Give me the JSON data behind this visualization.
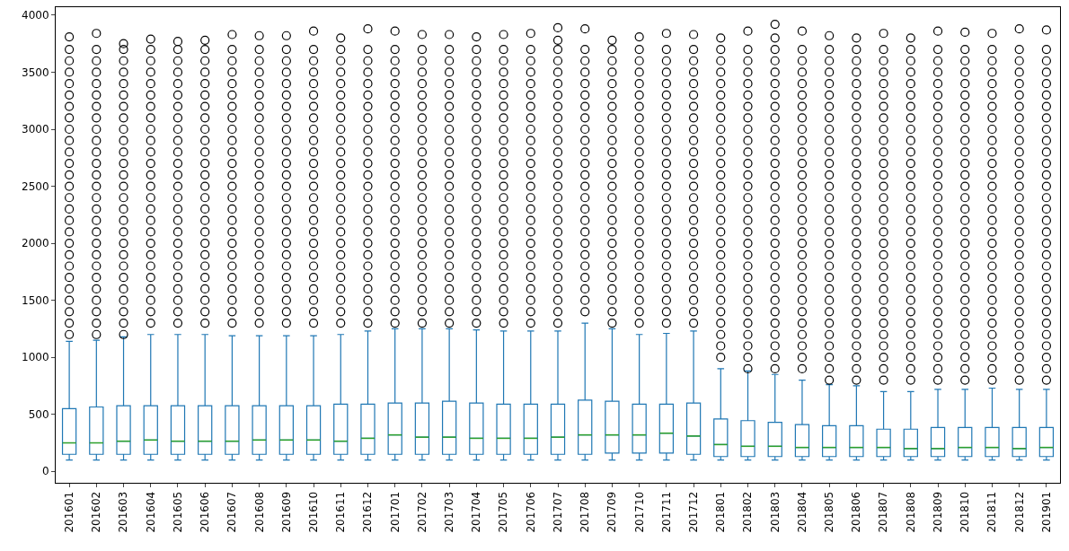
{
  "chart_data": {
    "type": "box",
    "categories": [
      "201601",
      "201602",
      "201603",
      "201604",
      "201605",
      "201606",
      "201607",
      "201608",
      "201609",
      "201610",
      "201611",
      "201612",
      "201701",
      "201702",
      "201703",
      "201704",
      "201705",
      "201706",
      "201707",
      "201708",
      "201709",
      "201710",
      "201711",
      "201712",
      "201801",
      "201802",
      "201803",
      "201804",
      "201805",
      "201806",
      "201807",
      "201808",
      "201809",
      "201810",
      "201811",
      "201812",
      "201901"
    ],
    "series": [
      {
        "color": "#1f77b4",
        "boxes": [
          {
            "low": 100,
            "q1": 150,
            "median": 250,
            "q3": 550,
            "high": 1140,
            "outliers": [
              1200,
              1300,
              1400,
              1500,
              1600,
              1700,
              1800,
              1900,
              2000,
              2100,
              2200,
              2300,
              2400,
              2500,
              2600,
              2700,
              2800,
              2900,
              3000,
              3100,
              3200,
              3300,
              3400,
              3500,
              3600,
              3700,
              3810
            ]
          },
          {
            "low": 100,
            "q1": 150,
            "median": 250,
            "q3": 565,
            "high": 1150,
            "outliers": [
              1200,
              1300,
              1400,
              1500,
              1600,
              1700,
              1800,
              1900,
              2000,
              2100,
              2200,
              2300,
              2400,
              2500,
              2600,
              2700,
              2800,
              2900,
              3000,
              3100,
              3200,
              3300,
              3400,
              3500,
              3600,
              3700,
              3840
            ]
          },
          {
            "low": 100,
            "q1": 150,
            "median": 265,
            "q3": 575,
            "high": 1180,
            "outliers": [
              1200,
              1300,
              1400,
              1500,
              1600,
              1700,
              1800,
              1900,
              2000,
              2100,
              2200,
              2300,
              2400,
              2500,
              2600,
              2700,
              2800,
              2900,
              3000,
              3100,
              3200,
              3300,
              3400,
              3500,
              3600,
              3700,
              3750
            ]
          },
          {
            "low": 100,
            "q1": 150,
            "median": 275,
            "q3": 575,
            "high": 1200,
            "outliers": [
              1300,
              1400,
              1500,
              1600,
              1700,
              1800,
              1900,
              2000,
              2100,
              2200,
              2300,
              2400,
              2500,
              2600,
              2700,
              2800,
              2900,
              3000,
              3100,
              3200,
              3300,
              3400,
              3500,
              3600,
              3700,
              3790
            ]
          },
          {
            "low": 100,
            "q1": 150,
            "median": 265,
            "q3": 575,
            "high": 1200,
            "outliers": [
              1300,
              1400,
              1500,
              1600,
              1700,
              1800,
              1900,
              2000,
              2100,
              2200,
              2300,
              2400,
              2500,
              2600,
              2700,
              2800,
              2900,
              3000,
              3100,
              3200,
              3300,
              3400,
              3500,
              3600,
              3700,
              3770
            ]
          },
          {
            "low": 100,
            "q1": 150,
            "median": 265,
            "q3": 575,
            "high": 1200,
            "outliers": [
              1300,
              1400,
              1500,
              1600,
              1700,
              1800,
              1900,
              2000,
              2100,
              2200,
              2300,
              2400,
              2500,
              2600,
              2700,
              2800,
              2900,
              3000,
              3100,
              3200,
              3300,
              3400,
              3500,
              3600,
              3700,
              3780
            ]
          },
          {
            "low": 100,
            "q1": 150,
            "median": 265,
            "q3": 575,
            "high": 1190,
            "outliers": [
              1300,
              1400,
              1500,
              1600,
              1700,
              1800,
              1900,
              2000,
              2100,
              2200,
              2300,
              2400,
              2500,
              2600,
              2700,
              2800,
              2900,
              3000,
              3100,
              3200,
              3300,
              3400,
              3500,
              3600,
              3700,
              3830
            ]
          },
          {
            "low": 100,
            "q1": 150,
            "median": 275,
            "q3": 575,
            "high": 1190,
            "outliers": [
              1300,
              1400,
              1500,
              1600,
              1700,
              1800,
              1900,
              2000,
              2100,
              2200,
              2300,
              2400,
              2500,
              2600,
              2700,
              2800,
              2900,
              3000,
              3100,
              3200,
              3300,
              3400,
              3500,
              3600,
              3700,
              3820
            ]
          },
          {
            "low": 100,
            "q1": 150,
            "median": 275,
            "q3": 575,
            "high": 1190,
            "outliers": [
              1300,
              1400,
              1500,
              1600,
              1700,
              1800,
              1900,
              2000,
              2100,
              2200,
              2300,
              2400,
              2500,
              2600,
              2700,
              2800,
              2900,
              3000,
              3100,
              3200,
              3300,
              3400,
              3500,
              3600,
              3700,
              3820
            ]
          },
          {
            "low": 100,
            "q1": 150,
            "median": 275,
            "q3": 575,
            "high": 1190,
            "outliers": [
              1300,
              1400,
              1500,
              1600,
              1700,
              1800,
              1900,
              2000,
              2100,
              2200,
              2300,
              2400,
              2500,
              2600,
              2700,
              2800,
              2900,
              3000,
              3100,
              3200,
              3300,
              3400,
              3500,
              3600,
              3700,
              3860
            ]
          },
          {
            "low": 100,
            "q1": 150,
            "median": 265,
            "q3": 590,
            "high": 1200,
            "outliers": [
              1300,
              1400,
              1500,
              1600,
              1700,
              1800,
              1900,
              2000,
              2100,
              2200,
              2300,
              2400,
              2500,
              2600,
              2700,
              2800,
              2900,
              3000,
              3100,
              3200,
              3300,
              3400,
              3500,
              3600,
              3700,
              3800
            ]
          },
          {
            "low": 100,
            "q1": 150,
            "median": 290,
            "q3": 590,
            "high": 1230,
            "outliers": [
              1300,
              1400,
              1500,
              1600,
              1700,
              1800,
              1900,
              2000,
              2100,
              2200,
              2300,
              2400,
              2500,
              2600,
              2700,
              2800,
              2900,
              3000,
              3100,
              3200,
              3300,
              3400,
              3500,
              3600,
              3700,
              3880
            ]
          },
          {
            "low": 100,
            "q1": 150,
            "median": 320,
            "q3": 600,
            "high": 1250,
            "outliers": [
              1300,
              1400,
              1500,
              1600,
              1700,
              1800,
              1900,
              2000,
              2100,
              2200,
              2300,
              2400,
              2500,
              2600,
              2700,
              2800,
              2900,
              3000,
              3100,
              3200,
              3300,
              3400,
              3500,
              3600,
              3700,
              3860
            ]
          },
          {
            "low": 100,
            "q1": 150,
            "median": 300,
            "q3": 600,
            "high": 1250,
            "outliers": [
              1300,
              1400,
              1500,
              1600,
              1700,
              1800,
              1900,
              2000,
              2100,
              2200,
              2300,
              2400,
              2500,
              2600,
              2700,
              2800,
              2900,
              3000,
              3100,
              3200,
              3300,
              3400,
              3500,
              3600,
              3700,
              3830
            ]
          },
          {
            "low": 100,
            "q1": 150,
            "median": 300,
            "q3": 615,
            "high": 1250,
            "outliers": [
              1300,
              1400,
              1500,
              1600,
              1700,
              1800,
              1900,
              2000,
              2100,
              2200,
              2300,
              2400,
              2500,
              2600,
              2700,
              2800,
              2900,
              3000,
              3100,
              3200,
              3300,
              3400,
              3500,
              3600,
              3700,
              3830
            ]
          },
          {
            "low": 100,
            "q1": 150,
            "median": 290,
            "q3": 600,
            "high": 1240,
            "outliers": [
              1300,
              1400,
              1500,
              1600,
              1700,
              1800,
              1900,
              2000,
              2100,
              2200,
              2300,
              2400,
              2500,
              2600,
              2700,
              2800,
              2900,
              3000,
              3100,
              3200,
              3300,
              3400,
              3500,
              3600,
              3700,
              3810
            ]
          },
          {
            "low": 100,
            "q1": 150,
            "median": 290,
            "q3": 590,
            "high": 1230,
            "outliers": [
              1300,
              1400,
              1500,
              1600,
              1700,
              1800,
              1900,
              2000,
              2100,
              2200,
              2300,
              2400,
              2500,
              2600,
              2700,
              2800,
              2900,
              3000,
              3100,
              3200,
              3300,
              3400,
              3500,
              3600,
              3700,
              3830
            ]
          },
          {
            "low": 100,
            "q1": 150,
            "median": 290,
            "q3": 590,
            "high": 1230,
            "outliers": [
              1300,
              1400,
              1500,
              1600,
              1700,
              1800,
              1900,
              2000,
              2100,
              2200,
              2300,
              2400,
              2500,
              2600,
              2700,
              2800,
              2900,
              3000,
              3100,
              3200,
              3300,
              3400,
              3500,
              3600,
              3700,
              3840
            ]
          },
          {
            "low": 100,
            "q1": 150,
            "median": 300,
            "q3": 590,
            "high": 1230,
            "outliers": [
              1300,
              1400,
              1500,
              1600,
              1700,
              1800,
              1900,
              2000,
              2100,
              2200,
              2300,
              2400,
              2500,
              2600,
              2700,
              2800,
              2900,
              3000,
              3100,
              3200,
              3300,
              3400,
              3500,
              3600,
              3700,
              3780,
              3890
            ]
          },
          {
            "low": 100,
            "q1": 150,
            "median": 320,
            "q3": 625,
            "high": 1300,
            "outliers": [
              1400,
              1500,
              1600,
              1700,
              1800,
              1900,
              2000,
              2100,
              2200,
              2300,
              2400,
              2500,
              2600,
              2700,
              2800,
              2900,
              3000,
              3100,
              3200,
              3300,
              3400,
              3500,
              3600,
              3700,
              3880
            ]
          },
          {
            "low": 100,
            "q1": 160,
            "median": 320,
            "q3": 615,
            "high": 1250,
            "outliers": [
              1300,
              1400,
              1500,
              1600,
              1700,
              1800,
              1900,
              2000,
              2100,
              2200,
              2300,
              2400,
              2500,
              2600,
              2700,
              2800,
              2900,
              3000,
              3100,
              3200,
              3300,
              3400,
              3500,
              3600,
              3700,
              3780
            ]
          },
          {
            "low": 100,
            "q1": 160,
            "median": 320,
            "q3": 590,
            "high": 1200,
            "outliers": [
              1300,
              1400,
              1500,
              1600,
              1700,
              1800,
              1900,
              2000,
              2100,
              2200,
              2300,
              2400,
              2500,
              2600,
              2700,
              2800,
              2900,
              3000,
              3100,
              3200,
              3300,
              3400,
              3500,
              3600,
              3700,
              3810
            ]
          },
          {
            "low": 100,
            "q1": 160,
            "median": 335,
            "q3": 590,
            "high": 1210,
            "outliers": [
              1300,
              1400,
              1500,
              1600,
              1700,
              1800,
              1900,
              2000,
              2100,
              2200,
              2300,
              2400,
              2500,
              2600,
              2700,
              2800,
              2900,
              3000,
              3100,
              3200,
              3300,
              3400,
              3500,
              3600,
              3700,
              3840
            ]
          },
          {
            "low": 100,
            "q1": 150,
            "median": 310,
            "q3": 600,
            "high": 1230,
            "outliers": [
              1300,
              1400,
              1500,
              1600,
              1700,
              1800,
              1900,
              2000,
              2100,
              2200,
              2300,
              2400,
              2500,
              2600,
              2700,
              2800,
              2900,
              3000,
              3100,
              3200,
              3300,
              3400,
              3500,
              3600,
              3700,
              3830
            ]
          },
          {
            "low": 100,
            "q1": 130,
            "median": 235,
            "q3": 460,
            "high": 900,
            "outliers": [
              1000,
              1100,
              1200,
              1300,
              1400,
              1500,
              1600,
              1700,
              1800,
              1900,
              2000,
              2100,
              2200,
              2300,
              2400,
              2500,
              2600,
              2700,
              2800,
              2900,
              3000,
              3100,
              3200,
              3300,
              3400,
              3500,
              3600,
              3700,
              3800
            ]
          },
          {
            "low": 100,
            "q1": 130,
            "median": 220,
            "q3": 445,
            "high": 880,
            "outliers": [
              900,
              1000,
              1100,
              1200,
              1300,
              1400,
              1500,
              1600,
              1700,
              1800,
              1900,
              2000,
              2100,
              2200,
              2300,
              2400,
              2500,
              2600,
              2700,
              2800,
              2900,
              3000,
              3100,
              3200,
              3300,
              3400,
              3500,
              3600,
              3700,
              3860
            ]
          },
          {
            "low": 100,
            "q1": 130,
            "median": 220,
            "q3": 430,
            "high": 850,
            "outliers": [
              900,
              1000,
              1100,
              1200,
              1300,
              1400,
              1500,
              1600,
              1700,
              1800,
              1900,
              2000,
              2100,
              2200,
              2300,
              2400,
              2500,
              2600,
              2700,
              2800,
              2900,
              3000,
              3100,
              3200,
              3300,
              3400,
              3500,
              3600,
              3700,
              3800,
              3920
            ]
          },
          {
            "low": 100,
            "q1": 130,
            "median": 210,
            "q3": 410,
            "high": 800,
            "outliers": [
              900,
              1000,
              1100,
              1200,
              1300,
              1400,
              1500,
              1600,
              1700,
              1800,
              1900,
              2000,
              2100,
              2200,
              2300,
              2400,
              2500,
              2600,
              2700,
              2800,
              2900,
              3000,
              3100,
              3200,
              3300,
              3400,
              3500,
              3600,
              3700,
              3860
            ]
          },
          {
            "low": 100,
            "q1": 130,
            "median": 210,
            "q3": 400,
            "high": 760,
            "outliers": [
              800,
              900,
              1000,
              1100,
              1200,
              1300,
              1400,
              1500,
              1600,
              1700,
              1800,
              1900,
              2000,
              2100,
              2200,
              2300,
              2400,
              2500,
              2600,
              2700,
              2800,
              2900,
              3000,
              3100,
              3200,
              3300,
              3400,
              3500,
              3600,
              3700,
              3820
            ]
          },
          {
            "low": 100,
            "q1": 130,
            "median": 210,
            "q3": 400,
            "high": 750,
            "outliers": [
              800,
              900,
              1000,
              1100,
              1200,
              1300,
              1400,
              1500,
              1600,
              1700,
              1800,
              1900,
              2000,
              2100,
              2200,
              2300,
              2400,
              2500,
              2600,
              2700,
              2800,
              2900,
              3000,
              3100,
              3200,
              3300,
              3400,
              3500,
              3600,
              3700,
              3800
            ]
          },
          {
            "low": 100,
            "q1": 130,
            "median": 210,
            "q3": 370,
            "high": 700,
            "outliers": [
              800,
              900,
              1000,
              1100,
              1200,
              1300,
              1400,
              1500,
              1600,
              1700,
              1800,
              1900,
              2000,
              2100,
              2200,
              2300,
              2400,
              2500,
              2600,
              2700,
              2800,
              2900,
              3000,
              3100,
              3200,
              3300,
              3400,
              3500,
              3600,
              3700,
              3840
            ]
          },
          {
            "low": 100,
            "q1": 130,
            "median": 200,
            "q3": 370,
            "high": 700,
            "outliers": [
              800,
              900,
              1000,
              1100,
              1200,
              1300,
              1400,
              1500,
              1600,
              1700,
              1800,
              1900,
              2000,
              2100,
              2200,
              2300,
              2400,
              2500,
              2600,
              2700,
              2800,
              2900,
              3000,
              3100,
              3200,
              3300,
              3400,
              3500,
              3600,
              3700,
              3800
            ]
          },
          {
            "low": 100,
            "q1": 130,
            "median": 200,
            "q3": 385,
            "high": 720,
            "outliers": [
              800,
              900,
              1000,
              1100,
              1200,
              1300,
              1400,
              1500,
              1600,
              1700,
              1800,
              1900,
              2000,
              2100,
              2200,
              2300,
              2400,
              2500,
              2600,
              2700,
              2800,
              2900,
              3000,
              3100,
              3200,
              3300,
              3400,
              3500,
              3600,
              3700,
              3860
            ]
          },
          {
            "low": 100,
            "q1": 130,
            "median": 210,
            "q3": 385,
            "high": 720,
            "outliers": [
              800,
              900,
              1000,
              1100,
              1200,
              1300,
              1400,
              1500,
              1600,
              1700,
              1800,
              1900,
              2000,
              2100,
              2200,
              2300,
              2400,
              2500,
              2600,
              2700,
              2800,
              2900,
              3000,
              3100,
              3200,
              3300,
              3400,
              3500,
              3600,
              3700,
              3850
            ]
          },
          {
            "low": 100,
            "q1": 130,
            "median": 210,
            "q3": 385,
            "high": 730,
            "outliers": [
              800,
              900,
              1000,
              1100,
              1200,
              1300,
              1400,
              1500,
              1600,
              1700,
              1800,
              1900,
              2000,
              2100,
              2200,
              2300,
              2400,
              2500,
              2600,
              2700,
              2800,
              2900,
              3000,
              3100,
              3200,
              3300,
              3400,
              3500,
              3600,
              3700,
              3840
            ]
          },
          {
            "low": 100,
            "q1": 130,
            "median": 200,
            "q3": 385,
            "high": 720,
            "outliers": [
              800,
              900,
              1000,
              1100,
              1200,
              1300,
              1400,
              1500,
              1600,
              1700,
              1800,
              1900,
              2000,
              2100,
              2200,
              2300,
              2400,
              2500,
              2600,
              2700,
              2800,
              2900,
              3000,
              3100,
              3200,
              3300,
              3400,
              3500,
              3600,
              3700,
              3880
            ]
          },
          {
            "low": 100,
            "q1": 130,
            "median": 210,
            "q3": 385,
            "high": 720,
            "outliers": [
              800,
              900,
              1000,
              1100,
              1200,
              1300,
              1400,
              1500,
              1600,
              1700,
              1800,
              1900,
              2000,
              2100,
              2200,
              2300,
              2400,
              2500,
              2600,
              2700,
              2800,
              2900,
              3000,
              3100,
              3200,
              3300,
              3400,
              3500,
              3600,
              3700,
              3870
            ]
          }
        ]
      }
    ],
    "ylim": [
      -100,
      4070
    ],
    "yticks": [
      0,
      500,
      1000,
      1500,
      2000,
      2500,
      3000,
      3500,
      4000
    ],
    "grid": false
  }
}
